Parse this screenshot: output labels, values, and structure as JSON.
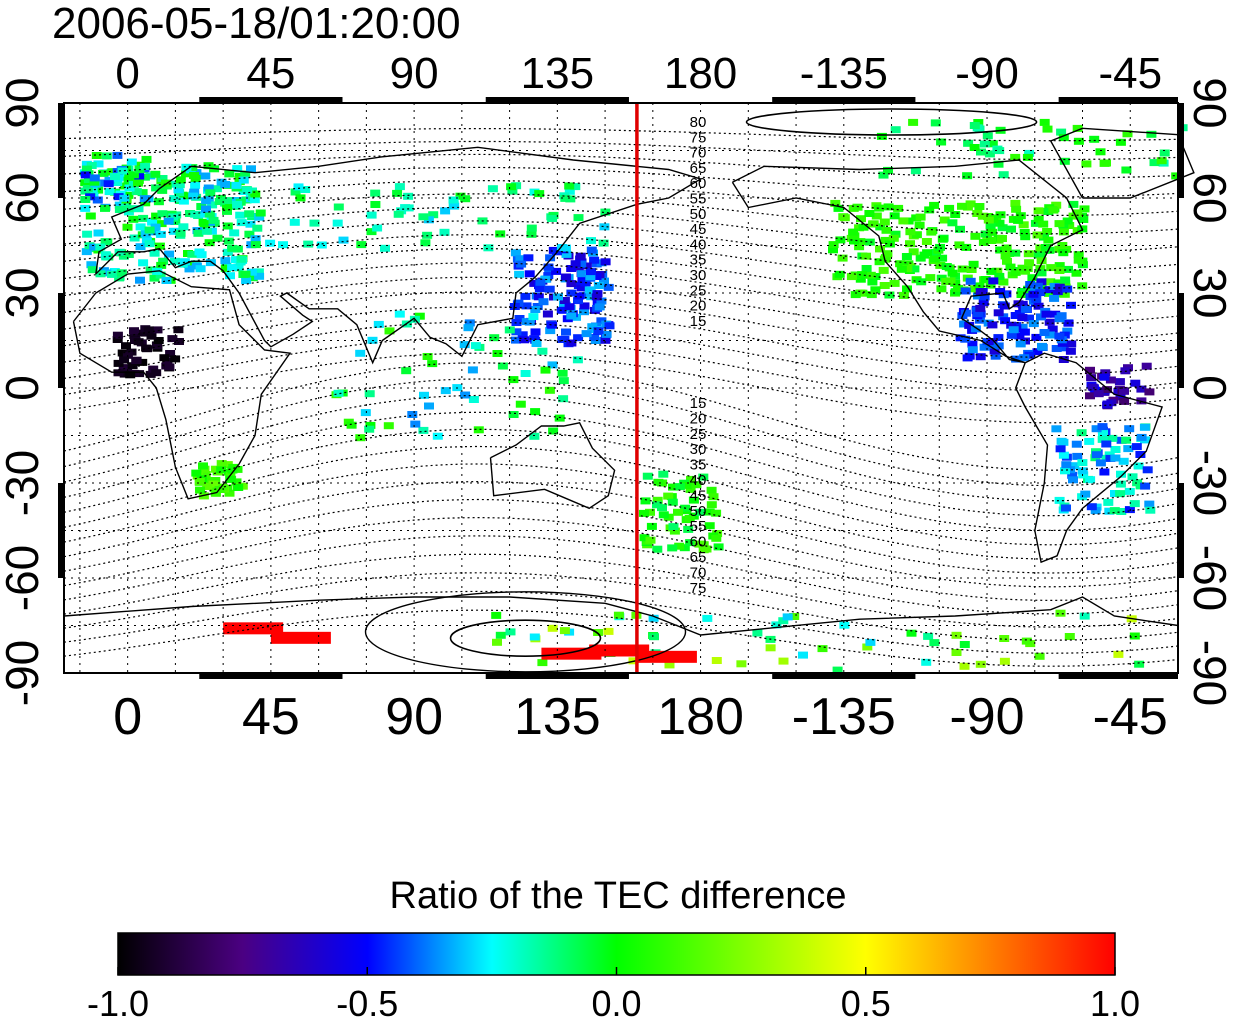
{
  "timestamp": "2006-05-18/01:20:00",
  "colorbar": {
    "title": "Ratio of the TEC difference",
    "ticks": [
      "-1.0",
      "-0.5",
      "0.0",
      "0.5",
      "1.0"
    ],
    "stops": [
      {
        "v": -1.0,
        "color": "#000000"
      },
      {
        "v": -0.75,
        "color": "#4b0082"
      },
      {
        "v": -0.5,
        "color": "#0000ff"
      },
      {
        "v": -0.25,
        "color": "#00ffff"
      },
      {
        "v": 0.0,
        "color": "#00ff00"
      },
      {
        "v": 0.5,
        "color": "#ffff00"
      },
      {
        "v": 1.0,
        "color": "#ff0000"
      }
    ]
  },
  "axes": {
    "top_ticks": [
      "0",
      "45",
      "90",
      "135",
      "180",
      "-135",
      "-90",
      "-45"
    ],
    "bottom_ticks": [
      "0",
      "45",
      "90",
      "135",
      "180",
      "-135",
      "-90",
      "-45"
    ],
    "left_ticks": [
      "90",
      "60",
      "30",
      "0",
      "-30",
      "-60",
      "-90"
    ],
    "right_ticks": [
      "90",
      "60",
      "30",
      "0",
      "-30",
      "-60",
      "-90"
    ],
    "lon_range": [
      -20,
      330
    ],
    "lat_range": [
      -90,
      90
    ],
    "grid": true,
    "grid_style": "dotted"
  },
  "marker_meridian": {
    "lon": 160,
    "color": "#e00000"
  },
  "contour_labels": {
    "north": [
      "80",
      "75",
      "70",
      "65",
      "60",
      "55",
      "50",
      "45",
      "40",
      "35",
      "30",
      "25",
      "20",
      "15"
    ],
    "south": [
      "15",
      "20",
      "25",
      "30",
      "35",
      "40",
      "45",
      "50",
      "55",
      "60",
      "65",
      "70",
      "75"
    ]
  }
}
